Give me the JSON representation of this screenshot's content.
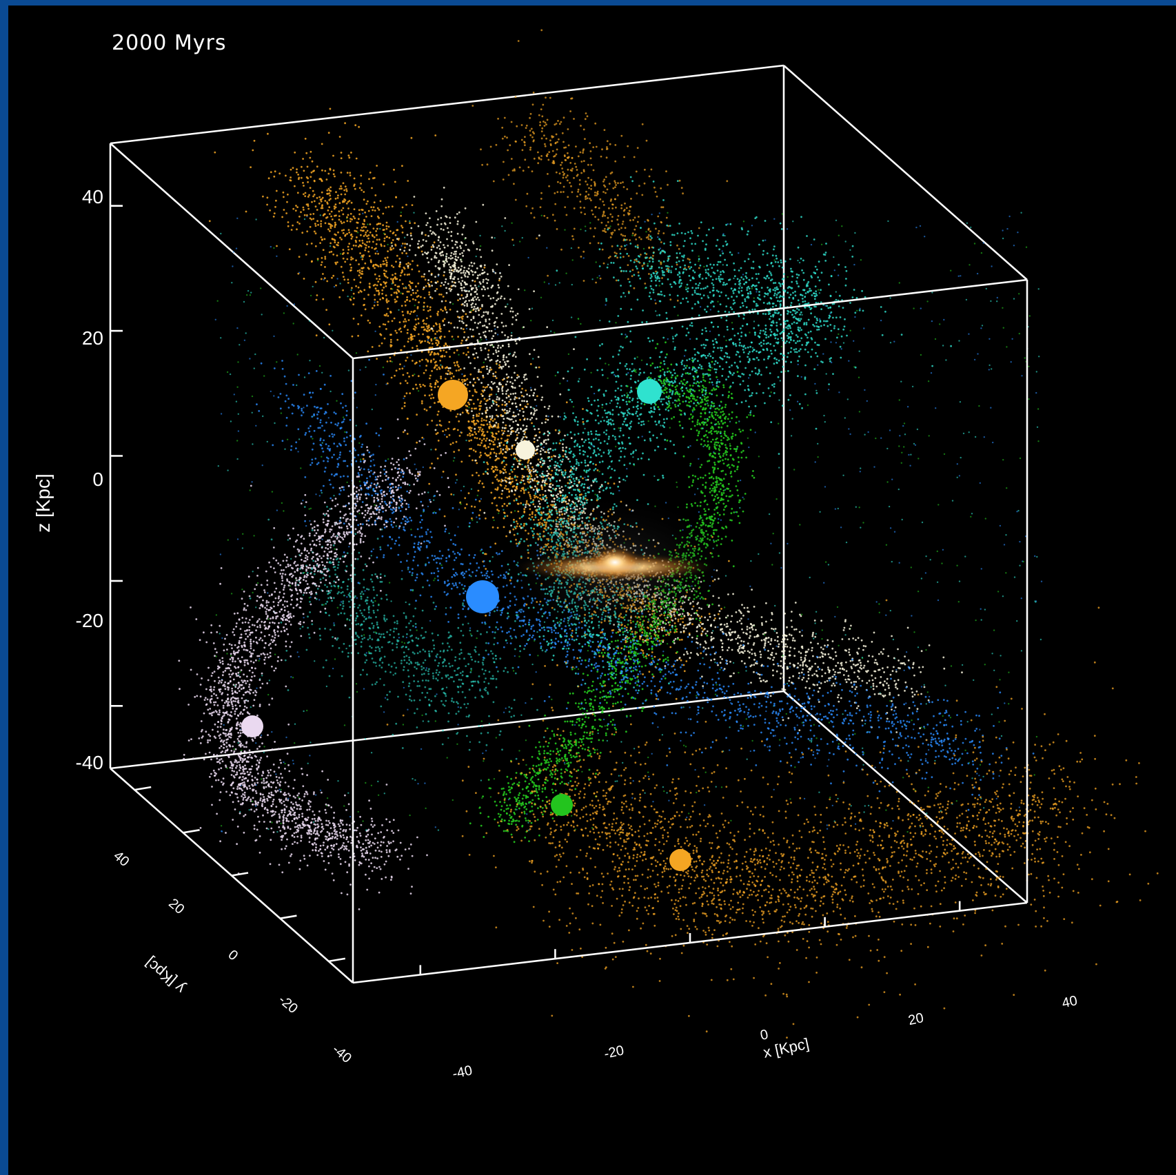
{
  "chart_data": {
    "type": "scatter",
    "view": "3d-perspective-box",
    "time_label": "2000 Myrs",
    "axes": {
      "x": {
        "label": "x [Kpc]",
        "range": [
          -50,
          50
        ],
        "ticks": [
          -40,
          -20,
          0,
          20,
          40
        ]
      },
      "y": {
        "label": "y [Kpc]",
        "range": [
          -50,
          50
        ],
        "ticks": [
          40,
          20,
          0,
          -20,
          -40
        ]
      },
      "z": {
        "label": "z [Kpc]",
        "range": [
          -50,
          50
        ],
        "ticks": [
          40,
          20,
          0,
          -20,
          -40
        ]
      }
    },
    "tick_labels": {
      "x": [
        "-40",
        "-20",
        "0",
        "20",
        "40"
      ],
      "y": [
        "40",
        "20",
        "0",
        "-20",
        "-40"
      ],
      "z": [
        "40",
        "20",
        "0",
        "-20",
        "-40"
      ]
    },
    "central_galaxy": {
      "x": 0,
      "y": 0,
      "z": -10,
      "description_color": "#ffd9a0"
    },
    "series": [
      {
        "color": "#f5a623",
        "stream_shape": "leading-trailing tails",
        "core": [
          -20,
          18,
          14
        ],
        "spread_kpc": 10
      },
      {
        "color": "#f7f3dc",
        "stream_shape": "arc",
        "core": [
          -14,
          10,
          6
        ],
        "spread_kpc": 8
      },
      {
        "color": "#2fe2cf",
        "stream_shape": "loop",
        "core": [
          6,
          12,
          14
        ],
        "spread_kpc": 14
      },
      {
        "color": "#2a8cff",
        "stream_shape": "arc",
        "core": [
          -22,
          0,
          -18
        ],
        "spread_kpc": 12
      },
      {
        "color": "#23c41e",
        "stream_shape": "loop",
        "core": [
          -12,
          -6,
          -42
        ],
        "spread_kpc": 10
      },
      {
        "color": "#ead9f0",
        "stream_shape": "arc",
        "core": [
          -48,
          20,
          -34
        ],
        "spread_kpc": 10
      },
      {
        "color": "#f5a623",
        "stream_shape": "diffuse",
        "core": [
          -4,
          -20,
          -46
        ],
        "spread_kpc": 16
      }
    ],
    "grid": false,
    "legend": "none"
  }
}
